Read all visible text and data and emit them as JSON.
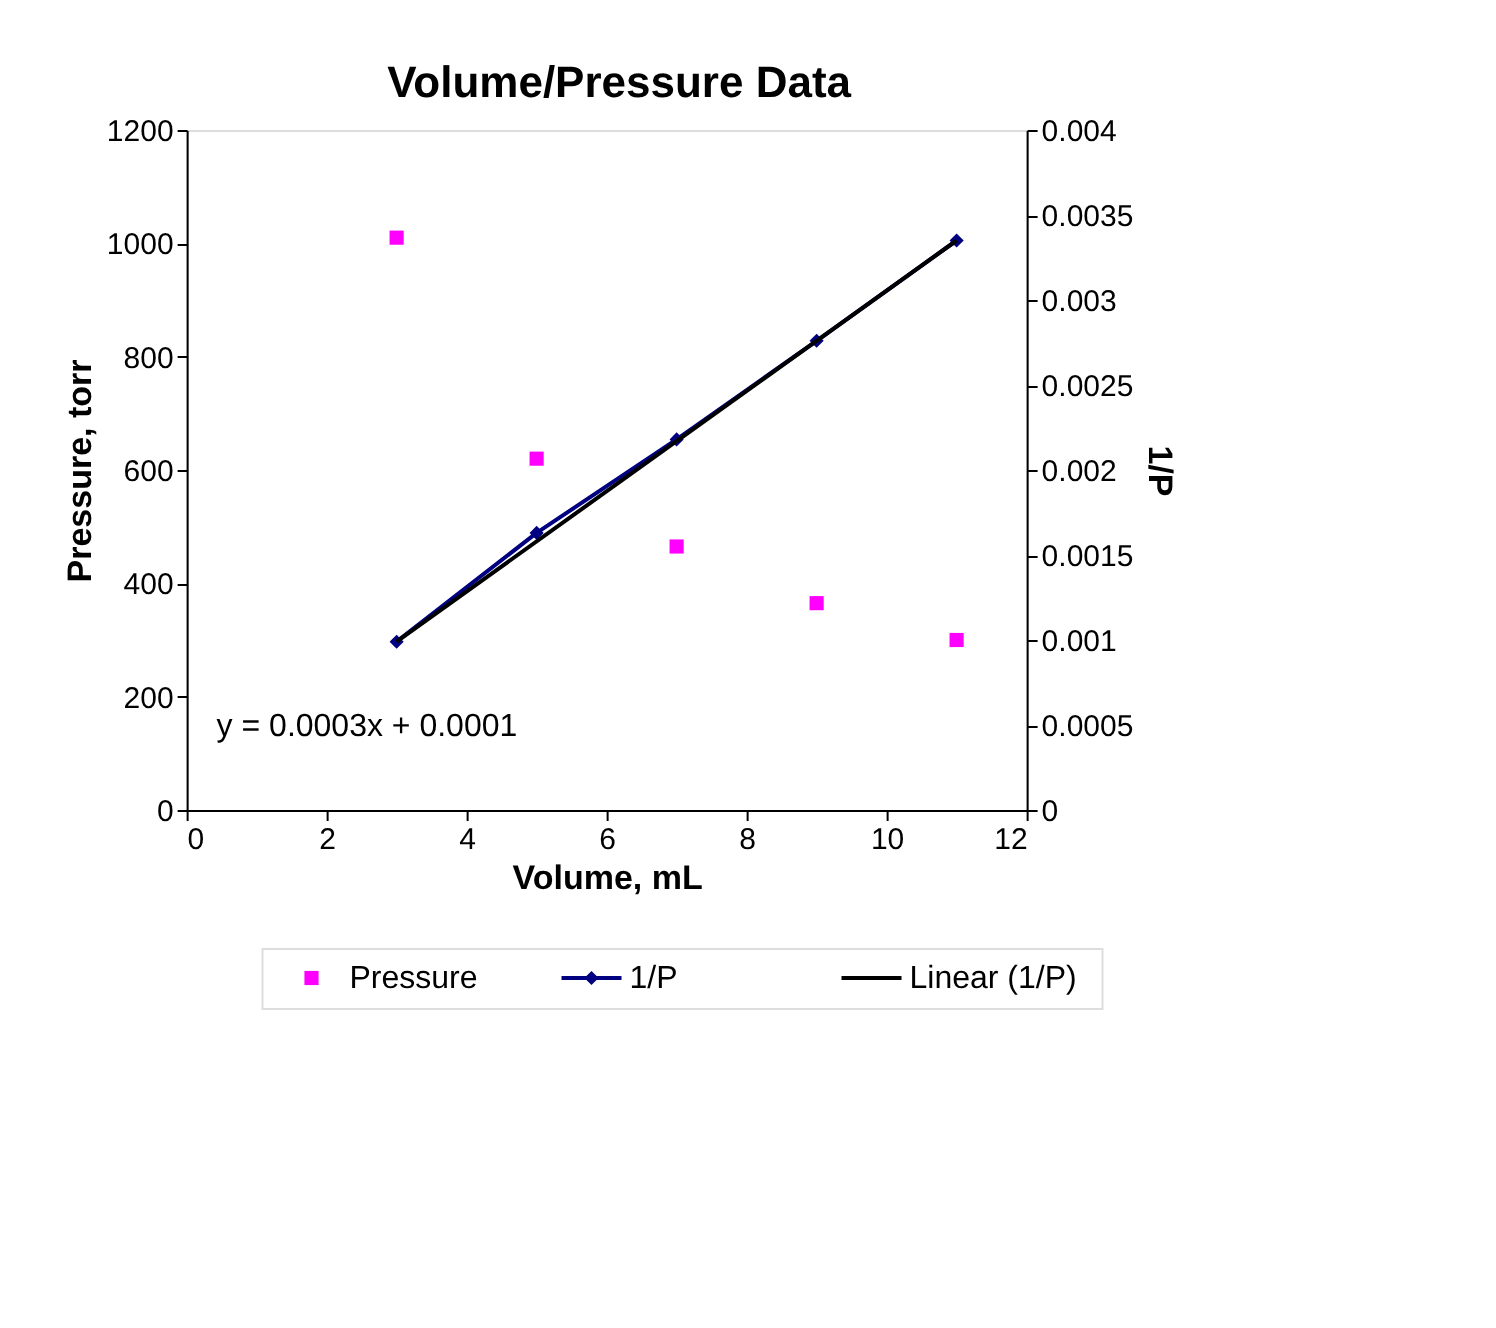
{
  "chart_data": {
    "type": "scatter",
    "title": "Volume/Pressure Data",
    "xlabel": "Volume, mL",
    "ylabel": "Pressure, torr",
    "y2label": "1/P",
    "x": [
      3,
      5,
      7,
      9,
      11
    ],
    "series": [
      {
        "name": "Pressure",
        "type": "scatter",
        "marker": "square",
        "color": "#ff00ff",
        "values": [
          1010,
          620,
          465,
          365,
          300
        ]
      },
      {
        "name": "1/P",
        "type": "line",
        "marker": "diamond",
        "color": "#000080",
        "axis": "y2",
        "values": [
          0.00099,
          0.00163,
          0.00218,
          0.00276,
          0.00335
        ]
      },
      {
        "name": "Linear (1/P)",
        "type": "line",
        "marker": "none",
        "color": "#000000",
        "axis": "y2",
        "x": [
          3,
          11
        ],
        "values": [
          0.00099,
          0.00335
        ]
      }
    ],
    "xlim": [
      0,
      12
    ],
    "xticks": [
      0,
      2,
      4,
      6,
      8,
      10,
      12
    ],
    "ylim": [
      0,
      1200
    ],
    "yticks": [
      0,
      200,
      400,
      600,
      800,
      1000,
      1200
    ],
    "y2lim": [
      0,
      0.004
    ],
    "y2ticks": [
      0,
      0.0005,
      0.001,
      0.0015,
      0.002,
      0.0025,
      0.003,
      0.0035,
      0.004
    ],
    "annotations": [
      "y = 0.0003x + 0.0001"
    ],
    "grid": false,
    "legend": "bottom"
  }
}
